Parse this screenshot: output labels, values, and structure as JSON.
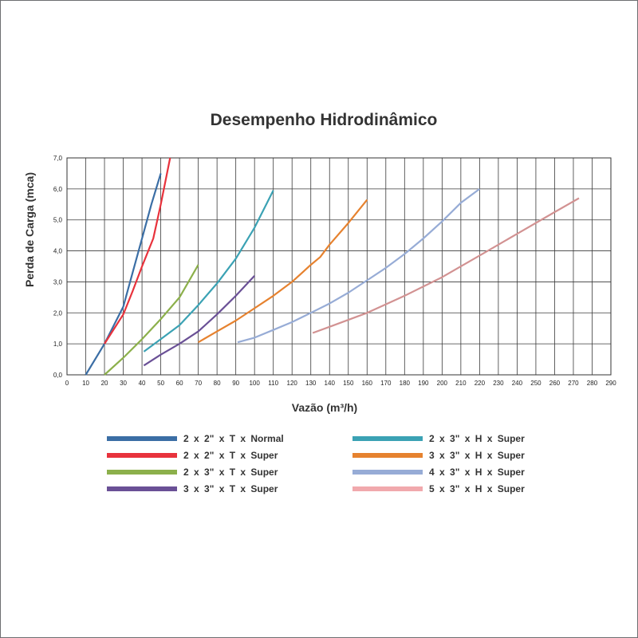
{
  "chart_data": {
    "type": "line",
    "title": "Desempenho Hidrodinâmico",
    "xlabel": "Vazão (m³/h)",
    "ylabel": "Perda de Carga  (mca)",
    "xlim": [
      0,
      290
    ],
    "ylim": [
      0,
      7
    ],
    "x_ticks": [
      "0",
      "10",
      "20",
      "30",
      "40",
      "50",
      "60",
      "70",
      "80",
      "90",
      "100",
      "110",
      "120",
      "130",
      "140",
      "150",
      "160",
      "170",
      "180",
      "190",
      "200",
      "210",
      "220",
      "230",
      "240",
      "250",
      "260",
      "270",
      "280",
      "290"
    ],
    "y_ticks": [
      "0,0",
      "1,0",
      "2,0",
      "3,0",
      "4,0",
      "5,0",
      "6,0",
      "7,0"
    ],
    "grid": true,
    "legend_position": "bottom",
    "series": [
      {
        "name": "2 x 2\" x T x Normal",
        "color": "#3b6ea5",
        "x": [
          10,
          20,
          30,
          35,
          40,
          45,
          50
        ],
        "y": [
          0.0,
          1.0,
          2.2,
          3.3,
          4.4,
          5.5,
          6.5
        ]
      },
      {
        "name": "2 x 2\" x T x Super",
        "color": "#e8323c",
        "x": [
          20,
          30,
          35,
          40,
          46,
          50,
          55
        ],
        "y": [
          1.0,
          1.95,
          2.7,
          3.5,
          4.4,
          5.5,
          7.0
        ]
      },
      {
        "name": "2 x 3\" x T x Super",
        "color": "#8cb04b",
        "x": [
          20,
          30,
          40,
          50,
          60,
          70
        ],
        "y": [
          0.0,
          0.55,
          1.15,
          1.8,
          2.5,
          3.55
        ]
      },
      {
        "name": "3 x 3\" x T x Super",
        "color": "#6a5096",
        "x": [
          41,
          50,
          60,
          70,
          80,
          90,
          100
        ],
        "y": [
          0.3,
          0.65,
          1.0,
          1.4,
          1.95,
          2.55,
          3.2
        ]
      },
      {
        "name": "2 x 3\" x H x Super",
        "color": "#3ba2b4",
        "x": [
          41,
          50,
          60,
          70,
          80,
          90,
          100,
          110
        ],
        "y": [
          0.75,
          1.15,
          1.6,
          2.25,
          2.95,
          3.75,
          4.75,
          5.95
        ]
      },
      {
        "name": "3 x 3\" x H x Super",
        "color": "#e6822f",
        "x": [
          70,
          80,
          90,
          100,
          110,
          120,
          130,
          135,
          140,
          150,
          160
        ],
        "y": [
          1.05,
          1.4,
          1.75,
          2.15,
          2.55,
          3.0,
          3.55,
          3.8,
          4.2,
          4.9,
          5.65
        ]
      },
      {
        "name": "4 x 3\" x H x Super",
        "color": "#97acd6",
        "x": [
          91,
          100,
          110,
          120,
          130,
          140,
          150,
          160,
          170,
          180,
          190,
          200,
          210,
          220
        ],
        "y": [
          1.05,
          1.2,
          1.45,
          1.7,
          2.0,
          2.3,
          2.65,
          3.05,
          3.45,
          3.9,
          4.4,
          4.95,
          5.55,
          6.0
        ]
      },
      {
        "name": "5 x 3\" x H x Super",
        "color": "#f1a9ad",
        "line_color": "#d29292",
        "x": [
          131,
          140,
          160,
          180,
          200,
          220,
          240,
          260,
          273
        ],
        "y": [
          1.35,
          1.55,
          2.0,
          2.55,
          3.15,
          3.85,
          4.55,
          5.25,
          5.7
        ]
      }
    ]
  }
}
